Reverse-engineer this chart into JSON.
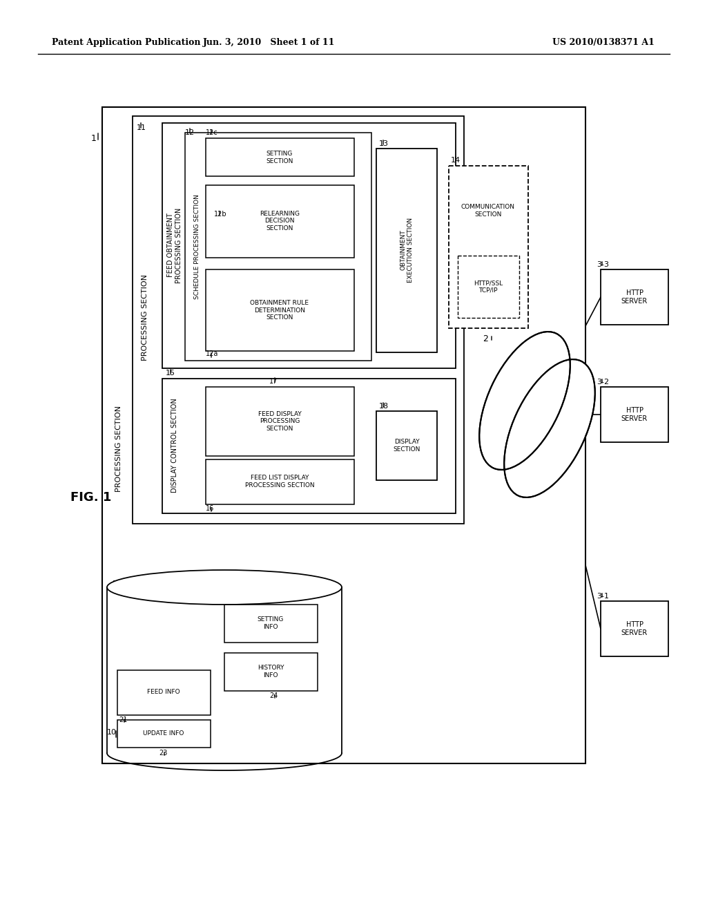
{
  "bg_color": "#ffffff",
  "header_left": "Patent Application Publication",
  "header_mid": "Jun. 3, 2010   Sheet 1 of 11",
  "header_right": "US 2010/0138371 A1",
  "fig_label": "FIG. 1"
}
